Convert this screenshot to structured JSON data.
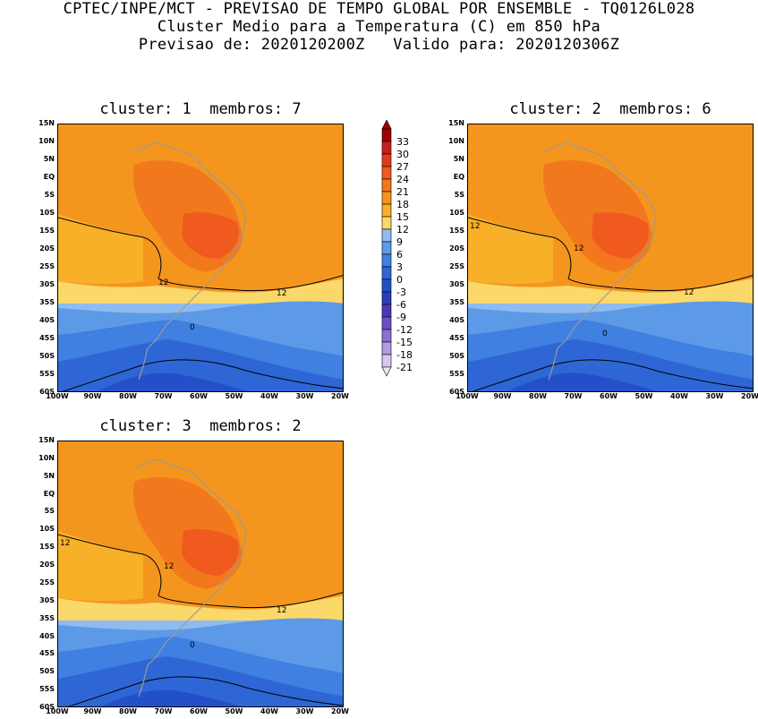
{
  "header": {
    "line1": "CPTEC/INPE/MCT - PREVISAO DE TEMPO GLOBAL POR ENSEMBLE - TQ0126L028",
    "line2": "Cluster Medio para a Temperatura (C) em 850 hPa",
    "line3": "Previsao de: 2020120200Z   Valido para: 2020120306Z"
  },
  "panels": [
    {
      "title": "cluster: 1  membros: 7",
      "contour_labels": [
        "12",
        "12",
        "0"
      ]
    },
    {
      "title": "cluster: 2  membros: 6",
      "contour_labels": [
        "12",
        "12",
        "12",
        "0"
      ]
    },
    {
      "title": "cluster: 3  membros: 2",
      "contour_labels": [
        "12",
        "12",
        "12",
        "0"
      ]
    }
  ],
  "axes": {
    "lat_labels": [
      "15N",
      "10N",
      "5N",
      "EQ",
      "5S",
      "10S",
      "15S",
      "20S",
      "25S",
      "30S",
      "35S",
      "40S",
      "45S",
      "50S",
      "55S",
      "60S"
    ],
    "lon_labels": [
      "100W",
      "90W",
      "80W",
      "70W",
      "60W",
      "50W",
      "40W",
      "30W",
      "20W"
    ]
  },
  "colorbar": {
    "levels": [
      "33",
      "30",
      "27",
      "24",
      "21",
      "18",
      "15",
      "12",
      "9",
      "6",
      "3",
      "0",
      "-3",
      "-6",
      "-9",
      "-12",
      "-15",
      "-18",
      "-21"
    ],
    "colors": [
      "#a00000",
      "#c42020",
      "#e23a20",
      "#f05a1e",
      "#f2781e",
      "#f4961e",
      "#f7b028",
      "#fad86a",
      "#8ebcf0",
      "#5c9ae8",
      "#3f80e0",
      "#2e66d6",
      "#2350c8",
      "#2b3cb8",
      "#4638b8",
      "#6a52c4",
      "#8a70d0",
      "#b49ae0",
      "#d8c8f0"
    ]
  }
}
